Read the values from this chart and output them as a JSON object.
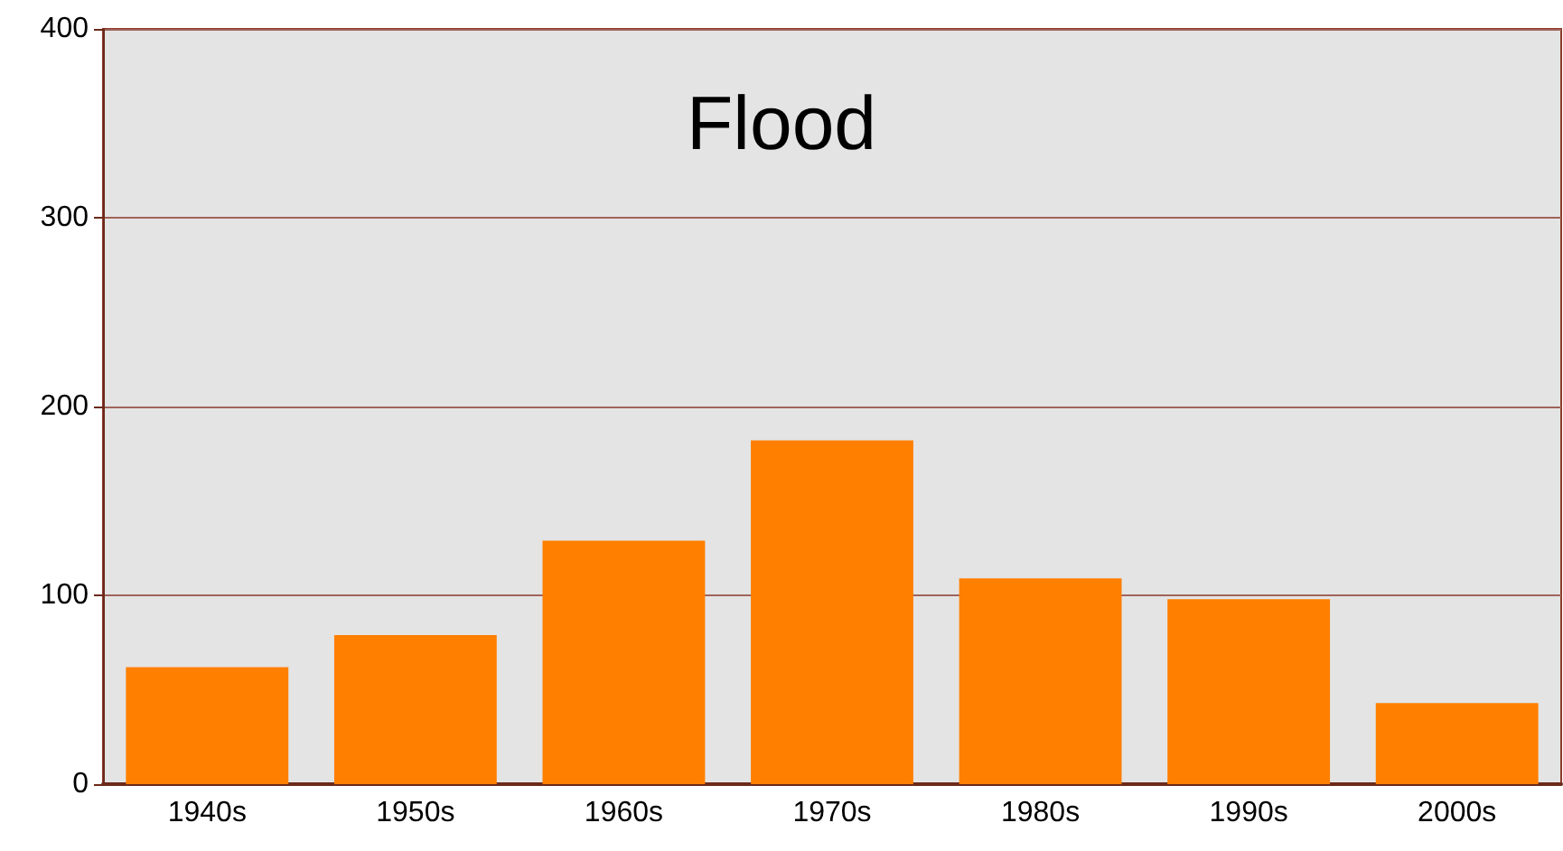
{
  "chart_data": {
    "type": "bar",
    "title": "Flood",
    "categories": [
      "1940s",
      "1950s",
      "1960s",
      "1970s",
      "1980s",
      "1990s",
      "2000s"
    ],
    "values": [
      62,
      79,
      129,
      182,
      109,
      98,
      43
    ],
    "color": "#ff7f00",
    "ylim": [
      0,
      400
    ],
    "yticks": [
      0,
      100,
      200,
      300,
      400
    ],
    "grid": "y"
  }
}
